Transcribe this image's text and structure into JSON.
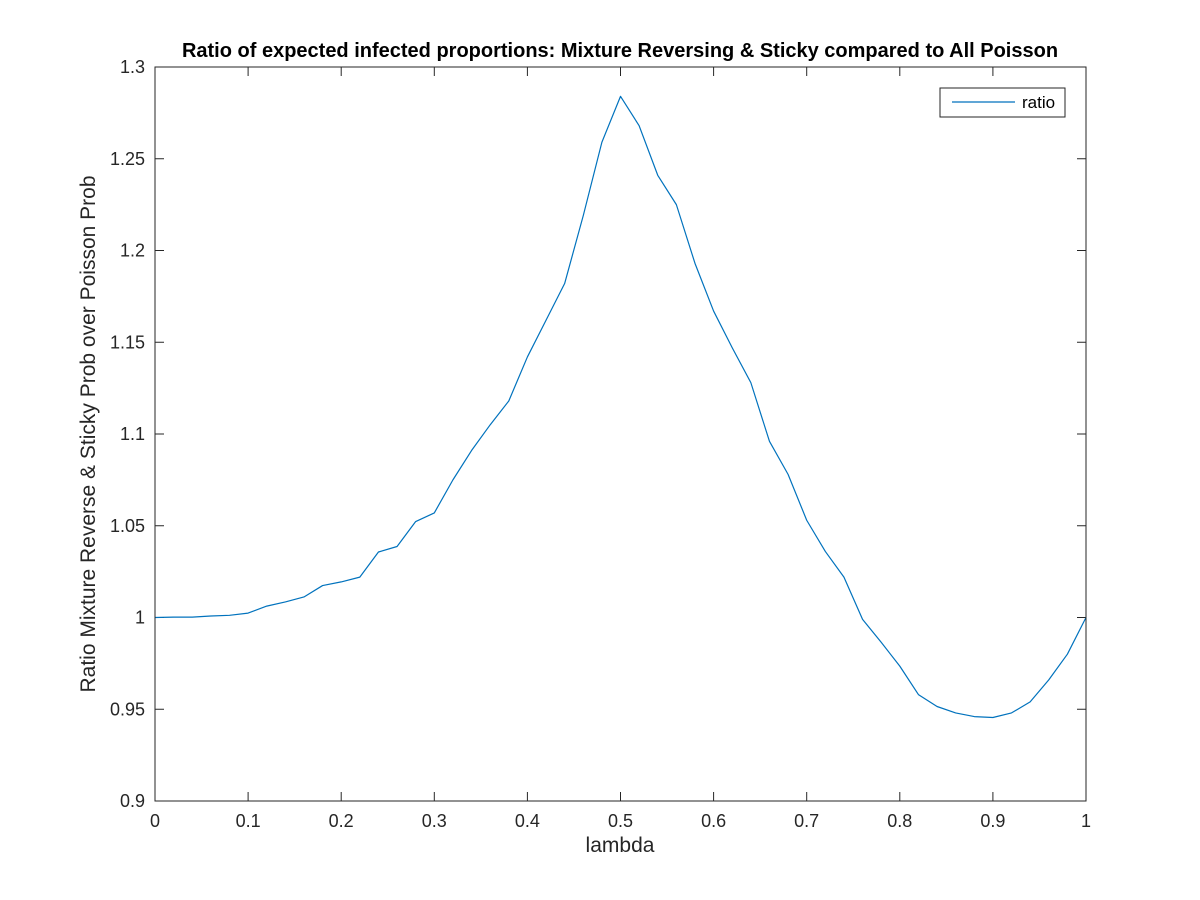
{
  "chart_data": {
    "type": "line",
    "title": "Ratio of expected infected proportions: Mixture Reversing & Sticky compared to All Poisson",
    "xlabel": "lambda",
    "ylabel": "Ratio Mixture Reverse & Sticky Prob over Poisson Prob",
    "xlim": [
      0,
      1
    ],
    "ylim": [
      0.9,
      1.3
    ],
    "xticks": [
      0,
      0.1,
      0.2,
      0.3,
      0.4,
      0.5,
      0.6,
      0.7,
      0.8,
      0.9,
      1
    ],
    "xtick_labels": [
      "0",
      "0.1",
      "0.2",
      "0.3",
      "0.4",
      "0.5",
      "0.6",
      "0.7",
      "0.8",
      "0.9",
      "1"
    ],
    "yticks": [
      0.9,
      0.95,
      1,
      1.05,
      1.1,
      1.15,
      1.2,
      1.25,
      1.3
    ],
    "ytick_labels": [
      "0.9",
      "0.95",
      "1",
      "1.05",
      "1.1",
      "1.15",
      "1.2",
      "1.25",
      "1.3"
    ],
    "grid": false,
    "legend_position": "top-right",
    "colors": {
      "series": "#0072BD",
      "axes": "#262626"
    },
    "series": [
      {
        "name": "ratio",
        "x": [
          0,
          0.02,
          0.04,
          0.06,
          0.08,
          0.1,
          0.12,
          0.14,
          0.16,
          0.18,
          0.2,
          0.22,
          0.24,
          0.26,
          0.28,
          0.3,
          0.32,
          0.34,
          0.36,
          0.38,
          0.4,
          0.42,
          0.44,
          0.46,
          0.48,
          0.5,
          0.52,
          0.54,
          0.56,
          0.58,
          0.6,
          0.62,
          0.64,
          0.66,
          0.68,
          0.7,
          0.72,
          0.74,
          0.76,
          0.78,
          0.8,
          0.82,
          0.84,
          0.86,
          0.88,
          0.9,
          0.92,
          0.94,
          0.96,
          0.98,
          1
        ],
        "values": [
          1.0,
          1.0002,
          1.0002,
          1.0008,
          1.0012,
          1.0024,
          1.0062,
          1.0085,
          1.0112,
          1.0174,
          1.0194,
          1.022,
          1.0357,
          1.0387,
          1.0523,
          1.057,
          1.075,
          1.091,
          1.105,
          1.118,
          1.142,
          1.162,
          1.182,
          1.219,
          1.259,
          1.284,
          1.268,
          1.241,
          1.225,
          1.193,
          1.167,
          1.147,
          1.128,
          1.096,
          1.078,
          1.053,
          1.036,
          1.022,
          0.999,
          0.9865,
          0.9735,
          0.958,
          0.9515,
          0.948,
          0.946,
          0.9455,
          0.948,
          0.954,
          0.966,
          0.98,
          1.0
        ]
      }
    ]
  }
}
